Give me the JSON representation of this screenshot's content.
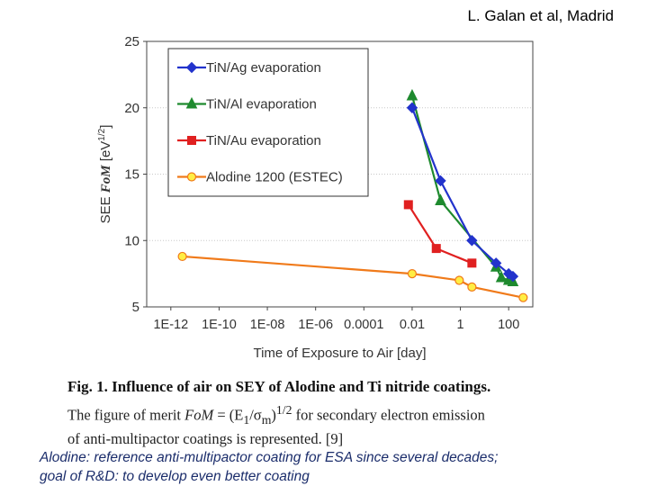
{
  "credit": "L. Galan et al, Madrid",
  "caption": {
    "fig_label": "Fig. 1.",
    "title": "Influence of air on SEY of Alodine and Ti nitride coatings.",
    "line1_pre": "The figure of merit",
    "line1_fom": "FoM",
    "line1_eq": "= (E",
    "line1_sub1": "1",
    "line1_slash": "/σ",
    "line1_sub2": "m",
    "line1_close": ")",
    "line1_exp": "1/2",
    "line1_post": "for secondary electron emission",
    "line2": "of anti-multipactor coatings is represented. [9]"
  },
  "note": {
    "line1": "Alodine: reference anti-multipactor coating for ESA since several decades;",
    "line2": "goal of R&D: to develop even better coating"
  },
  "chart_data": {
    "type": "line",
    "x_scale": "log10",
    "xlabel": "Time of Exposure to Air  [day]",
    "ylabel_pre": "SEE",
    "ylabel_fom": "FoM",
    "ylabel_unit": "[eV",
    "ylabel_exp": "1/2",
    "ylabel_close": "]",
    "xlim": [
      1e-13,
      1000
    ],
    "ylim": [
      5,
      25
    ],
    "y_ticks": [
      5,
      10,
      15,
      20,
      25
    ],
    "x_ticks": [
      1e-12,
      1e-10,
      1e-08,
      1e-06,
      0.0001,
      0.01,
      1,
      100
    ],
    "x_tick_labels": [
      "1E-12",
      "1E-10",
      "1E-08",
      "1E-06",
      "0.0001",
      "0.01",
      "1",
      "100"
    ],
    "legend_position": "top-left",
    "series": [
      {
        "name": "TiN/Ag  evaporation",
        "color": "#2233cc",
        "marker": "diamond",
        "x": [
          0.01,
          0.15,
          3,
          30,
          100,
          150
        ],
        "y": [
          20,
          14.5,
          10,
          8.3,
          7.5,
          7.3
        ]
      },
      {
        "name": "TiN/Al  evaporation",
        "color": "#1e8a2e",
        "marker": "triangle",
        "x": [
          0.01,
          0.15,
          30,
          50,
          100,
          150
        ],
        "y": [
          20.9,
          13,
          8,
          7.2,
          7.0,
          6.9
        ]
      },
      {
        "name": "TiN/Au  evaporation",
        "color": "#e02020",
        "marker": "square",
        "x": [
          0.007,
          0.1,
          3
        ],
        "y": [
          12.7,
          9.4,
          8.3
        ]
      },
      {
        "name": "Alodine 1200 (ESTEC)",
        "color": "#f07a1a",
        "marker_fill": "#ffee44",
        "marker": "circle",
        "x": [
          3e-12,
          0.01,
          0.9,
          3,
          400
        ],
        "y": [
          8.8,
          7.5,
          7.0,
          6.5,
          5.7
        ]
      }
    ]
  }
}
